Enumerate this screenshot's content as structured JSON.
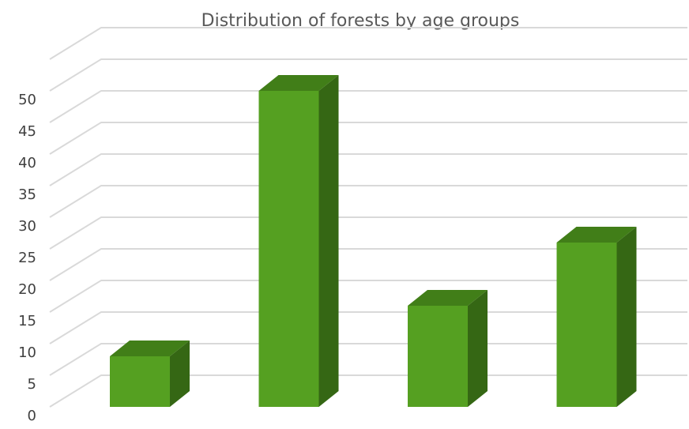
{
  "chart_data": {
    "type": "bar",
    "title": "Distribution of forests by age groups",
    "xlabel": "",
    "ylabel": "",
    "categories": [
      "",
      "",
      "",
      ""
    ],
    "values": [
      8,
      50,
      16,
      26
    ],
    "ylim": [
      0,
      50
    ],
    "yticks": [
      "0",
      "5",
      "10",
      "15",
      "20",
      "25",
      "30",
      "35",
      "40",
      "45",
      "50"
    ],
    "grid": true,
    "legend": "none",
    "colors": {
      "front": "#55a021",
      "side": "#356714",
      "top": "#417e18"
    }
  }
}
